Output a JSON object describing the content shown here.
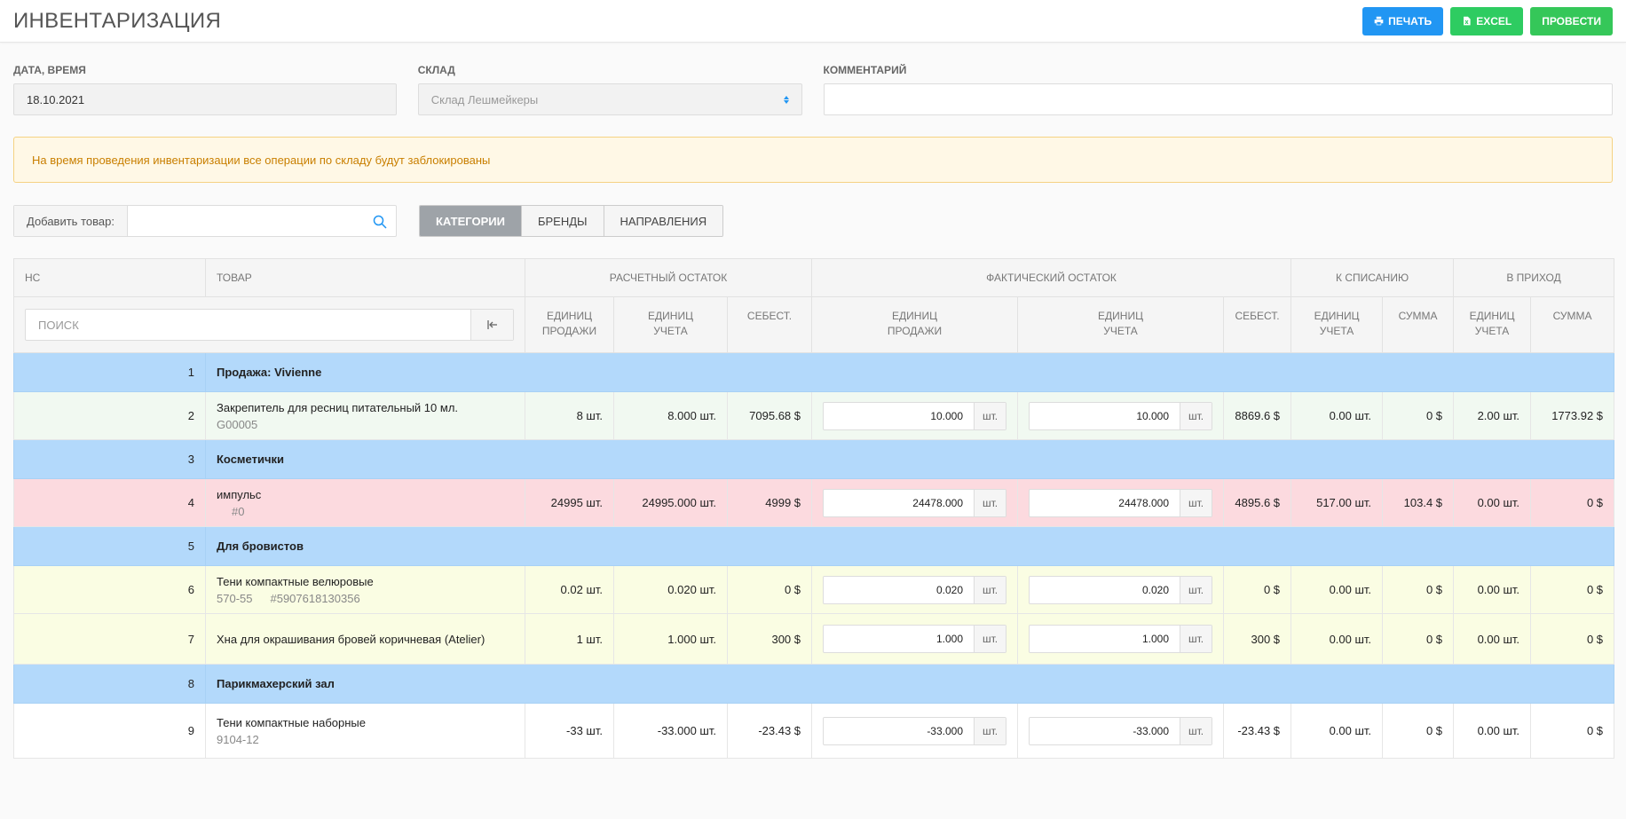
{
  "header": {
    "title": "ИНВЕНТАРИЗАЦИЯ",
    "print_label": "ПЕЧАТЬ",
    "excel_label": "EXCEL",
    "conduct_label": "ПРОВЕСТИ"
  },
  "form": {
    "date_label": "ДАТА, ВРЕМЯ",
    "date_value": "18.10.2021",
    "warehouse_label": "СКЛАД",
    "warehouse_value": "Склад Лешмейкеры",
    "comment_label": "КОММЕНТАРИЙ",
    "comment_value": ""
  },
  "alert": {
    "text": "На время проведения инвентаризации все операции по складу будут заблокированы"
  },
  "toolbar": {
    "add_label": "Добавить товар:",
    "add_value": "",
    "tabs": [
      "КАТЕГОРИИ",
      "БРЕНДЫ",
      "НАПРАВЛЕНИЯ"
    ]
  },
  "table": {
    "groups": {
      "nc": "НС",
      "product": "ТОВАР",
      "calc": "РАСЧЕТНЫЙ ОСТАТОК",
      "fact": "ФАКТИЧЕСКИЙ ОСТАТОК",
      "writeoff": "К СПИСАНИЮ",
      "income": "В ПРИХОД"
    },
    "search_placeholder": "Поиск",
    "sub": {
      "sale_units_1": "ЕДИНИЦ",
      "sale_units_2": "ПРОДАЖИ",
      "acc_units_1": "ЕДИНИЦ",
      "acc_units_2": "УЧЕТА",
      "cost": "СЕБЕСТ.",
      "sum": "СУММА"
    },
    "unit": "шт.",
    "rows": [
      {
        "n": "1",
        "name": "Продажа: Vivienne"
      },
      {
        "n": "2",
        "name": "Закрепитель для ресниц питательный 10 мл.",
        "code": "G00005",
        "calc_sale": "8 шт.",
        "calc_acc": "8.000 шт.",
        "calc_cost": "7095.68 $",
        "fact_sale": "10.000",
        "fact_acc": "10.000",
        "fact_cost": "8869.6 $",
        "wo_units": "0.00 шт.",
        "wo_sum": "0 $",
        "in_units": "2.00 шт.",
        "in_sum": "1773.92 $"
      },
      {
        "n": "3",
        "name": "Косметички"
      },
      {
        "n": "4",
        "name": "импульс",
        "code": "#0",
        "calc_sale": "24995 шт.",
        "calc_acc": "24995.000 шт.",
        "calc_cost": "4999 $",
        "fact_sale": "24478.000",
        "fact_acc": "24478.000",
        "fact_cost": "4895.6 $",
        "wo_units": "517.00 шт.",
        "wo_sum": "103.4 $",
        "in_units": "0.00 шт.",
        "in_sum": "0 $"
      },
      {
        "n": "5",
        "name": "Для бровистов"
      },
      {
        "n": "6",
        "name": "Тени компактные велюровые",
        "code": "570-55",
        "barcode": "#5907618130356",
        "calc_sale": "0.02 шт.",
        "calc_acc": "0.020 шт.",
        "calc_cost": "0 $",
        "fact_sale": "0.020",
        "fact_acc": "0.020",
        "fact_cost": "0 $",
        "wo_units": "0.00 шт.",
        "wo_sum": "0 $",
        "in_units": "0.00 шт.",
        "in_sum": "0 $"
      },
      {
        "n": "7",
        "name": "Хна для окрашивания бровей коричневая (Atelier)",
        "calc_sale": "1 шт.",
        "calc_acc": "1.000 шт.",
        "calc_cost": "300 $",
        "fact_sale": "1.000",
        "fact_acc": "1.000",
        "fact_cost": "300 $",
        "wo_units": "0.00 шт.",
        "wo_sum": "0 $",
        "in_units": "0.00 шт.",
        "in_sum": "0 $"
      },
      {
        "n": "8",
        "name": "Парикмахерский зал"
      },
      {
        "n": "9",
        "name": "Тени компактные наборные",
        "code": "9104-12",
        "calc_sale": "-33 шт.",
        "calc_acc": "-33.000 шт.",
        "calc_cost": "-23.43 $",
        "fact_sale": "-33.000",
        "fact_acc": "-33.000",
        "fact_cost": "-23.43 $",
        "wo_units": "0.00 шт.",
        "wo_sum": "0 $",
        "in_units": "0.00 шт.",
        "in_sum": "0 $"
      }
    ]
  },
  "colors": {
    "accent_blue": "#2196f3",
    "accent_green": "#2ecc61",
    "category_row": "#b3d9fb",
    "row_green": "#f1f9f1",
    "row_red": "#fcdadf",
    "row_yellow": "#fafde3",
    "alert_text": "#c97f00"
  }
}
